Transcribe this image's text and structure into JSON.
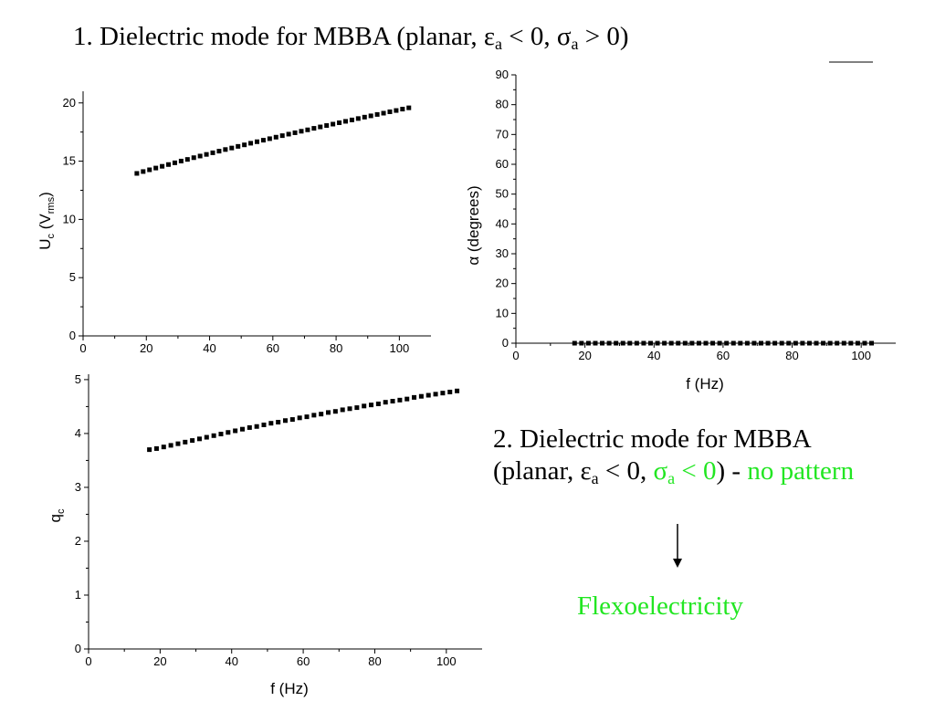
{
  "slide": {
    "heading": {
      "prefix": "1. Dielectric mode for MBBA (planar, ",
      "eps": "ε",
      "eps_sub": "a",
      "mid": " < 0, ",
      "sigma": "σ",
      "sigma_sub": "a",
      "suffix": " > 0)"
    },
    "case2": {
      "line1": "2. Dielectric mode for MBBA",
      "line2_prefix": "(planar, ",
      "eps": "ε",
      "eps_sub": "a",
      "mid": " < 0, ",
      "sigma": "σ",
      "sigma_sub": "a",
      "sigma_rel": " < 0",
      "close": ") - ",
      "note": "no pattern"
    },
    "arrow": "down-arrow",
    "conclusion": "Flexoelectricity",
    "accent_color": "#22e622"
  },
  "chart_data": [
    {
      "id": "uc",
      "type": "scatter",
      "marker": "square",
      "ylabel_main": "U",
      "ylabel_sub1": "c",
      "ylabel_mid": " (V",
      "ylabel_sub2": "rms",
      "ylabel_end": ")",
      "xlim": [
        0,
        110
      ],
      "ylim": [
        0,
        21
      ],
      "xticks": [
        0,
        20,
        40,
        60,
        80,
        100
      ],
      "yticks": [
        0,
        5,
        10,
        15,
        20
      ],
      "x": [
        17,
        19,
        21,
        23,
        25,
        27,
        29,
        31,
        33,
        35,
        37,
        39,
        41,
        43,
        45,
        47,
        49,
        51,
        53,
        55,
        57,
        59,
        61,
        63,
        65,
        67,
        69,
        71,
        73,
        75,
        77,
        79,
        81,
        83,
        85,
        87,
        89,
        91,
        93,
        95,
        97,
        99,
        101,
        103
      ],
      "y": [
        13.95,
        14.11,
        14.26,
        14.41,
        14.56,
        14.71,
        14.86,
        15.01,
        15.15,
        15.3,
        15.44,
        15.58,
        15.72,
        15.86,
        16.0,
        16.13,
        16.27,
        16.4,
        16.54,
        16.67,
        16.8,
        16.93,
        17.06,
        17.19,
        17.32,
        17.44,
        17.57,
        17.69,
        17.82,
        17.94,
        18.06,
        18.18,
        18.3,
        18.42,
        18.54,
        18.66,
        18.78,
        18.89,
        19.01,
        19.12,
        19.24,
        19.35,
        19.47,
        19.58
      ]
    },
    {
      "id": "alpha",
      "type": "scatter",
      "marker": "square",
      "xlabel": "f (Hz)",
      "ylabel": "α (degrees)",
      "xlim": [
        0,
        110
      ],
      "ylim": [
        0,
        90
      ],
      "xticks": [
        0,
        20,
        40,
        60,
        80,
        100
      ],
      "yticks": [
        0,
        10,
        20,
        30,
        40,
        50,
        60,
        70,
        80,
        90
      ],
      "x": [
        17,
        19,
        21,
        23,
        25,
        27,
        29,
        31,
        33,
        35,
        37,
        39,
        41,
        43,
        45,
        47,
        49,
        51,
        53,
        55,
        57,
        59,
        61,
        63,
        65,
        67,
        69,
        71,
        73,
        75,
        77,
        79,
        81,
        83,
        85,
        87,
        89,
        91,
        93,
        95,
        97,
        99,
        101,
        103
      ],
      "y": [
        0,
        0,
        0,
        0,
        0,
        0,
        0,
        0,
        0,
        0,
        0,
        0,
        0,
        0,
        0,
        0,
        0,
        0,
        0,
        0,
        0,
        0,
        0,
        0,
        0,
        0,
        0,
        0,
        0,
        0,
        0,
        0,
        0,
        0,
        0,
        0,
        0,
        0,
        0,
        0,
        0,
        0,
        0,
        0
      ]
    },
    {
      "id": "qc",
      "type": "scatter",
      "marker": "square",
      "xlabel": "f (Hz)",
      "ylabel_main": "q",
      "ylabel_sub1": "c",
      "xlim": [
        0,
        110
      ],
      "ylim": [
        0,
        5.1
      ],
      "xticks": [
        0,
        20,
        40,
        60,
        80,
        100
      ],
      "yticks": [
        0,
        1,
        2,
        3,
        4,
        5
      ],
      "x": [
        17,
        19,
        21,
        23,
        25,
        27,
        29,
        31,
        33,
        35,
        37,
        39,
        41,
        43,
        45,
        47,
        49,
        51,
        53,
        55,
        57,
        59,
        61,
        63,
        65,
        67,
        69,
        71,
        73,
        75,
        77,
        79,
        81,
        83,
        85,
        87,
        89,
        91,
        93,
        95,
        97,
        99,
        101,
        103
      ],
      "y": [
        3.7,
        3.72,
        3.75,
        3.78,
        3.81,
        3.84,
        3.87,
        3.9,
        3.93,
        3.96,
        3.99,
        4.02,
        4.05,
        4.08,
        4.11,
        4.13,
        4.16,
        4.19,
        4.21,
        4.24,
        4.26,
        4.29,
        4.31,
        4.34,
        4.36,
        4.39,
        4.41,
        4.44,
        4.46,
        4.48,
        4.51,
        4.53,
        4.55,
        4.58,
        4.6,
        4.62,
        4.64,
        4.67,
        4.69,
        4.71,
        4.73,
        4.75,
        4.77,
        4.79
      ]
    }
  ]
}
